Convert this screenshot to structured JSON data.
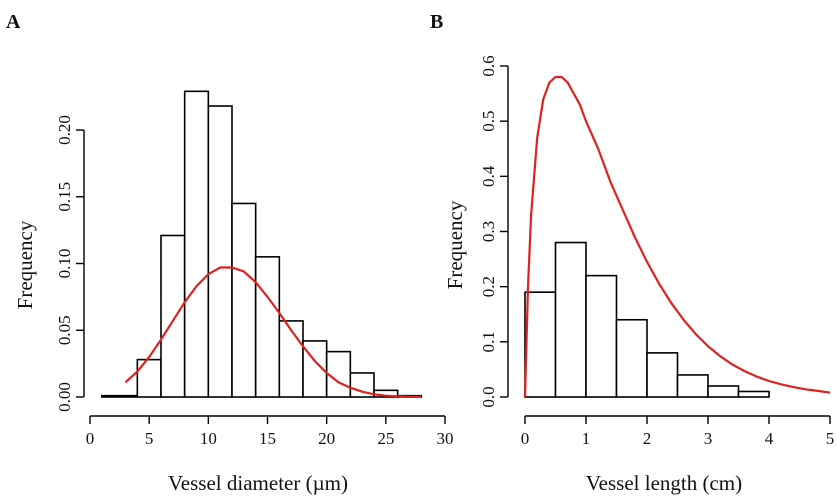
{
  "chart_data": [
    {
      "panel": "A",
      "type": "bar",
      "xlabel": "Vessel diameter (µm)",
      "ylabel": "Frequency",
      "xlim": [
        0,
        30
      ],
      "ylim": [
        0,
        0.23
      ],
      "xticks": [
        0,
        5,
        10,
        15,
        20,
        25,
        30
      ],
      "yticks": [
        0.0,
        0.05,
        0.1,
        0.15,
        0.2
      ],
      "ytick_labels": [
        "0.00",
        "0.05",
        "0.10",
        "0.15",
        "0.20"
      ],
      "bins": [
        [
          1,
          4
        ],
        [
          4,
          6
        ],
        [
          6,
          8
        ],
        [
          8,
          10
        ],
        [
          10,
          12
        ],
        [
          12,
          14
        ],
        [
          14,
          16
        ],
        [
          16,
          18
        ],
        [
          18,
          20
        ],
        [
          20,
          22
        ],
        [
          22,
          24
        ],
        [
          24,
          26
        ],
        [
          26,
          28
        ]
      ],
      "values": [
        0.001,
        0.028,
        0.121,
        0.229,
        0.218,
        0.145,
        0.105,
        0.057,
        0.042,
        0.034,
        0.018,
        0.005,
        0.001
      ],
      "fit_curve": {
        "color": "#dd2222",
        "x": [
          3,
          4,
          5,
          6,
          7,
          8,
          9,
          10,
          11,
          12,
          13,
          14,
          15,
          16,
          17,
          18,
          19,
          20,
          21,
          22,
          23,
          24,
          25,
          26,
          27,
          28
        ],
        "y": [
          0.011,
          0.019,
          0.03,
          0.043,
          0.057,
          0.071,
          0.083,
          0.092,
          0.097,
          0.097,
          0.094,
          0.086,
          0.075,
          0.063,
          0.05,
          0.038,
          0.027,
          0.018,
          0.011,
          0.007,
          0.004,
          0.002,
          0.001,
          0.0005,
          0.0002,
          0.0001
        ]
      }
    },
    {
      "panel": "B",
      "type": "bar",
      "xlabel": "Vessel length (cm)",
      "ylabel": "Frequency",
      "xlim": [
        0,
        5
      ],
      "ylim": [
        0,
        0.6
      ],
      "xticks": [
        0,
        1,
        2,
        3,
        4,
        5
      ],
      "yticks": [
        0.0,
        0.1,
        0.2,
        0.3,
        0.4,
        0.5,
        0.6
      ],
      "ytick_labels": [
        "0.0",
        "0.1",
        "0.2",
        "0.3",
        "0.4",
        "0.5",
        "0.6"
      ],
      "bins": [
        [
          0,
          0.5
        ],
        [
          0.5,
          1
        ],
        [
          1,
          1.5
        ],
        [
          1.5,
          2
        ],
        [
          2,
          2.5
        ],
        [
          2.5,
          3
        ],
        [
          3,
          3.5
        ],
        [
          3.5,
          4
        ]
      ],
      "values": [
        0.19,
        0.28,
        0.22,
        0.14,
        0.08,
        0.04,
        0.02,
        0.01
      ],
      "fit_curve": {
        "color": "#dd2222",
        "x": [
          0,
          0.05,
          0.1,
          0.2,
          0.3,
          0.4,
          0.5,
          0.6,
          0.7,
          0.8,
          0.9,
          1.0,
          1.2,
          1.4,
          1.6,
          1.8,
          2.0,
          2.2,
          2.4,
          2.6,
          2.8,
          3.0,
          3.2,
          3.4,
          3.6,
          3.8,
          4.0,
          4.2,
          4.4,
          4.6,
          4.8,
          5.0
        ],
        "y": [
          0.0,
          0.2,
          0.33,
          0.47,
          0.54,
          0.57,
          0.58,
          0.58,
          0.57,
          0.55,
          0.53,
          0.5,
          0.45,
          0.39,
          0.34,
          0.29,
          0.245,
          0.205,
          0.17,
          0.14,
          0.114,
          0.092,
          0.074,
          0.059,
          0.047,
          0.037,
          0.029,
          0.023,
          0.018,
          0.014,
          0.011,
          0.008
        ]
      }
    }
  ]
}
